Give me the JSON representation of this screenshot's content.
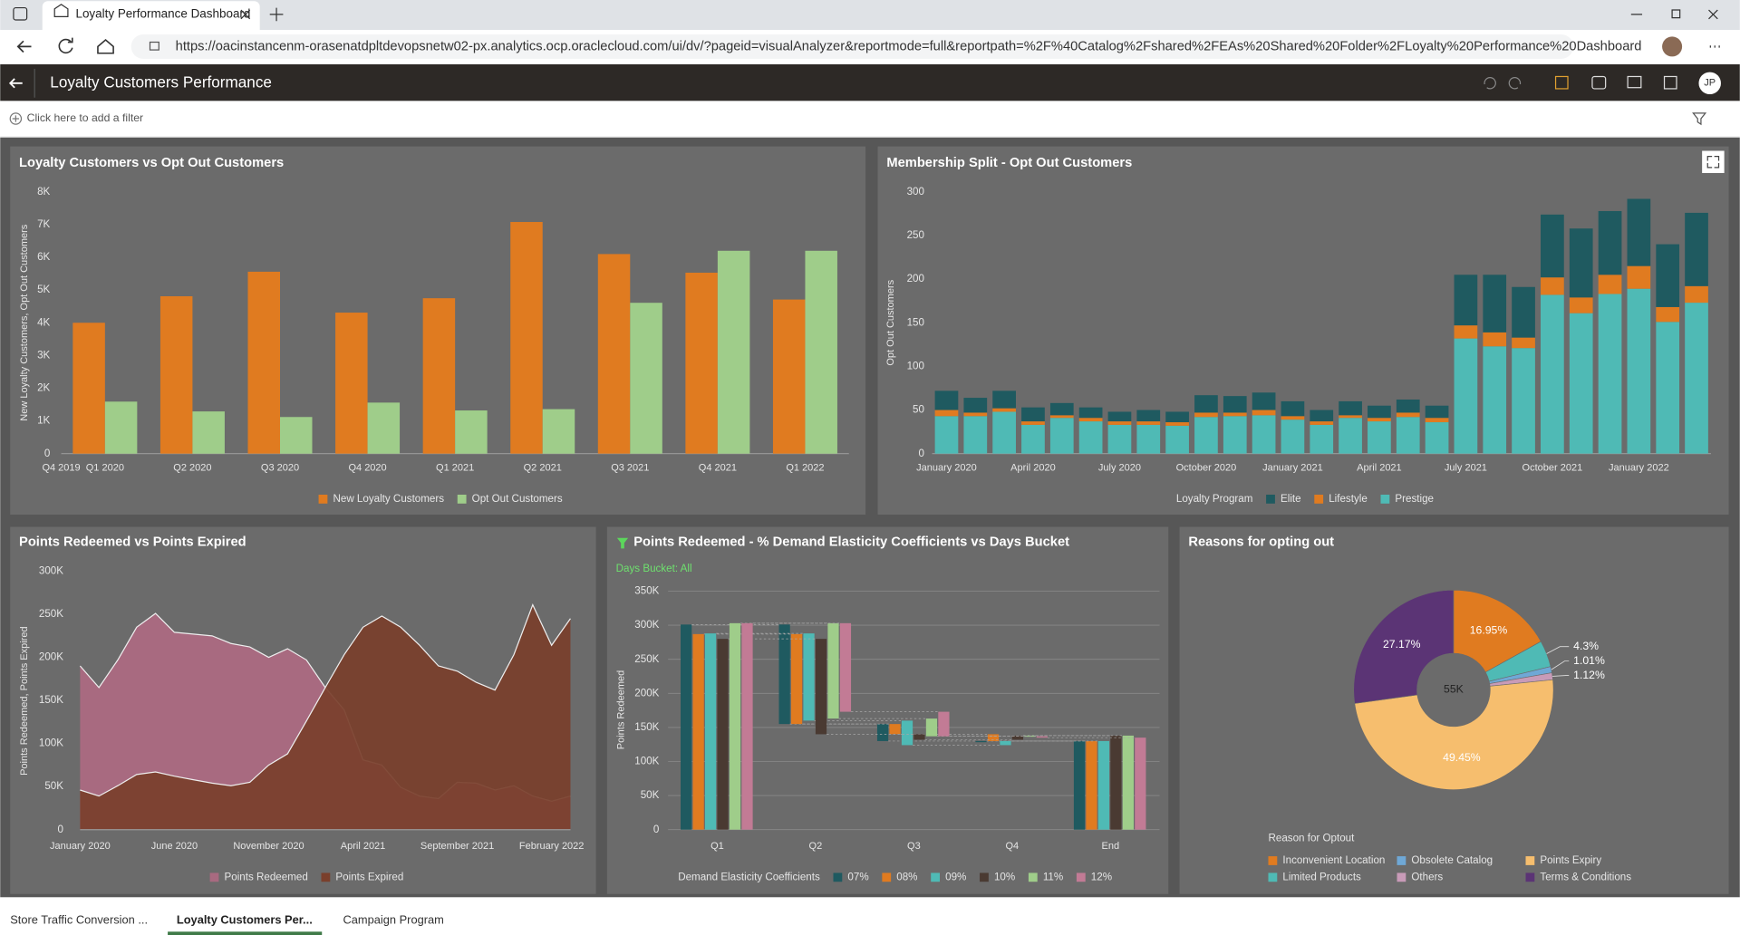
{
  "browser": {
    "tab_title": "Loyalty Performance Dashboard",
    "url": "https://oacinstancenm-orasenatdpltdevopsnetw02-px.analytics.ocp.oraclecloud.com/ui/dv/?pageid=visualAnalyzer&reportmode=full&reportpath=%2F%40Catalog%2Fshared%2FEAs%20Shared%20Folder%2FLoyalty%20Performance%20Dashboard"
  },
  "header": {
    "title": "Loyalty Customers Performance",
    "avatar": "JP"
  },
  "filter_bar": {
    "placeholder": "Click here to add a filter"
  },
  "chart_data": [
    {
      "type": "bar",
      "title": "Loyalty Customers vs Opt Out Customers",
      "y_label": "New Loyalty Customers, Opt Out Customers",
      "categories": [
        "Q4 2019",
        "Q1 2020",
        "Q2 2020",
        "Q3 2020",
        "Q4 2020",
        "Q1 2021",
        "Q2 2021",
        "Q3 2021",
        "Q4 2021",
        "Q1 2022"
      ],
      "series": [
        {
          "name": "New Loyalty Customers",
          "color": "#e07b20",
          "values": [
            null,
            4000,
            4810,
            5560,
            4310,
            4750,
            7080,
            6100,
            5530,
            4710
          ]
        },
        {
          "name": "Opt Out Customers",
          "color": "#9fcd8a",
          "values": [
            null,
            1590,
            1290,
            1120,
            1560,
            1320,
            1360,
            4610,
            6200,
            6200
          ]
        }
      ],
      "ylim": [
        0,
        8000
      ],
      "yticks": [
        0,
        {
          "value": 1000,
          "label": "1K"
        },
        {
          "value": 2000,
          "label": "2K"
        },
        {
          "value": 3000,
          "label": "3K"
        },
        {
          "value": 4000,
          "label": "4K"
        },
        {
          "value": 5000,
          "label": "5K"
        },
        {
          "value": 6000,
          "label": "6K"
        },
        {
          "value": 7000,
          "label": "7K"
        },
        {
          "value": 8000,
          "label": "8K"
        }
      ],
      "grid": false,
      "legend": "bottom"
    },
    {
      "type": "stacked_bar",
      "title": "Membership Split - Opt Out Customers",
      "y_label": "Opt Out Customers",
      "legend_title": "Loyalty Program",
      "categories": [
        "January 2020",
        null,
        null,
        "April 2020",
        null,
        null,
        "July 2020",
        null,
        null,
        "October 2020",
        null,
        null,
        "January 2021",
        null,
        null,
        "April 2021",
        null,
        null,
        "July 2021",
        null,
        null,
        "October 2021",
        null,
        null,
        "January 2022",
        null,
        null
      ],
      "series": [
        {
          "name": "Elite",
          "color": "#1f5a60",
          "values": [
            22,
            17,
            20,
            16,
            14,
            12,
            11,
            13,
            12,
            20,
            19,
            20,
            17,
            13,
            16,
            14,
            15,
            14,
            58,
            66,
            58,
            72,
            79,
            73,
            77,
            72,
            84
          ]
        },
        {
          "name": "Lifestyle",
          "color": "#e07b20",
          "values": [
            7,
            4,
            4,
            4,
            3,
            4,
            4,
            4,
            4,
            5,
            4,
            6,
            4,
            4,
            3,
            4,
            5,
            5,
            15,
            16,
            12,
            20,
            18,
            22,
            26,
            17,
            19
          ]
        },
        {
          "name": "Prestige",
          "color": "#4fbab5",
          "values": [
            43,
            43,
            48,
            33,
            41,
            37,
            33,
            33,
            32,
            42,
            43,
            44,
            39,
            33,
            41,
            37,
            42,
            36,
            132,
            123,
            121,
            182,
            161,
            183,
            189,
            151,
            173
          ]
        }
      ],
      "ylim": [
        0,
        300
      ],
      "yticks": [
        0,
        50,
        100,
        150,
        200,
        250,
        300
      ],
      "grid": false,
      "legend": "bottom"
    },
    {
      "type": "area",
      "title": "Points Redeemed vs Points Expired",
      "y_label": "Points Redeemed, Points Expired",
      "categories": [
        "January 2020",
        null,
        null,
        null,
        null,
        "June 2020",
        null,
        null,
        null,
        null,
        "November 2020",
        null,
        null,
        null,
        null,
        "April 2021",
        null,
        null,
        null,
        null,
        "September 2021",
        null,
        null,
        null,
        null,
        "February 2022",
        null
      ],
      "series": [
        {
          "name": "Points Redeemed",
          "color": "#a86a80",
          "values": [
            190000,
            165000,
            197000,
            235000,
            251000,
            229000,
            227000,
            225000,
            216000,
            212000,
            200000,
            210000,
            197000,
            165000,
            139000,
            81000,
            75000,
            49000,
            39000,
            36000,
            55000,
            54000,
            46000,
            51000,
            39000,
            33000,
            39000
          ]
        },
        {
          "name": "Points Expired",
          "color": "#7a3f2c",
          "values": [
            46000,
            39000,
            51000,
            64000,
            67000,
            62000,
            58000,
            54000,
            51000,
            55000,
            75000,
            88000,
            126000,
            165000,
            203000,
            235000,
            248000,
            235000,
            214000,
            190000,
            184000,
            171000,
            162000,
            203000,
            261000,
            214000,
            245000
          ]
        }
      ],
      "ylim": [
        0,
        300000
      ],
      "yticks": [
        0,
        {
          "value": 50000,
          "label": "50K"
        },
        {
          "value": 100000,
          "label": "100K"
        },
        {
          "value": 150000,
          "label": "150K"
        },
        {
          "value": 200000,
          "label": "200K"
        },
        {
          "value": 250000,
          "label": "250K"
        },
        {
          "value": 300000,
          "label": "300K"
        }
      ],
      "grid": false,
      "legend": "bottom"
    },
    {
      "type": "waterfall",
      "title": "Points Redeemed - % Demand Elasticity Coefficients vs Days Bucket",
      "subtitle": "Days Bucket: All",
      "y_label": "Points Redeemed",
      "legend_title": "Demand Elasticity Coefficients",
      "categories": [
        "Q1",
        "Q2",
        "Q3",
        "Q4",
        "End"
      ],
      "series": [
        {
          "name": "07%",
          "color": "#1f5a60",
          "values": [
            301000,
            -146000,
            -25000,
            0,
            130000
          ]
        },
        {
          "name": "08%",
          "color": "#e07b20",
          "values": [
            287000,
            -132000,
            -15000,
            -10000,
            130000
          ]
        },
        {
          "name": "09%",
          "color": "#4fbab5",
          "values": [
            288000,
            -128000,
            -36000,
            6000,
            130000
          ]
        },
        {
          "name": "10%",
          "color": "#4a3a32",
          "values": [
            280000,
            -140000,
            -8000,
            6000,
            138000
          ]
        },
        {
          "name": "11%",
          "color": "#9fcd8a",
          "values": [
            303000,
            -140000,
            -26000,
            1000,
            138000
          ]
        },
        {
          "name": "12%",
          "color": "#c27b95",
          "values": [
            303000,
            -130000,
            -36000,
            -2000,
            135000
          ]
        }
      ],
      "ylim": [
        0,
        350000
      ],
      "yticks": [
        0,
        {
          "value": 50000,
          "label": "50K"
        },
        {
          "value": 100000,
          "label": "100K"
        },
        {
          "value": 150000,
          "label": "150K"
        },
        {
          "value": 200000,
          "label": "200K"
        },
        {
          "value": 250000,
          "label": "250K"
        },
        {
          "value": 300000,
          "label": "300K"
        },
        {
          "value": 350000,
          "label": "350K"
        }
      ],
      "grid": true,
      "legend": "bottom"
    },
    {
      "type": "pie",
      "title": "Reasons for opting out",
      "legend_title": "Reason for Optout",
      "center_label": "55K",
      "categories": [
        "Inconvenient Location",
        "Limited Products",
        "Obsolete Catalog",
        "Others",
        "Points Expiry",
        "Terms & Conditions"
      ],
      "values": [
        16.95,
        4.3,
        1.01,
        1.12,
        49.45,
        27.17
      ],
      "value_labels": [
        "16.95%",
        "4.3%",
        "1.01%",
        "1.12%",
        "49.45%",
        "27.17%"
      ],
      "colors": [
        "#e07b20",
        "#4fbab5",
        "#6fa8d6",
        "#c89bb8",
        "#f6be6e",
        "#5b3475"
      ],
      "legend": "bottom"
    }
  ],
  "footer_tabs": [
    "Store Traffic Conversion ...",
    "Loyalty Customers Per...",
    "Campaign Program"
  ]
}
